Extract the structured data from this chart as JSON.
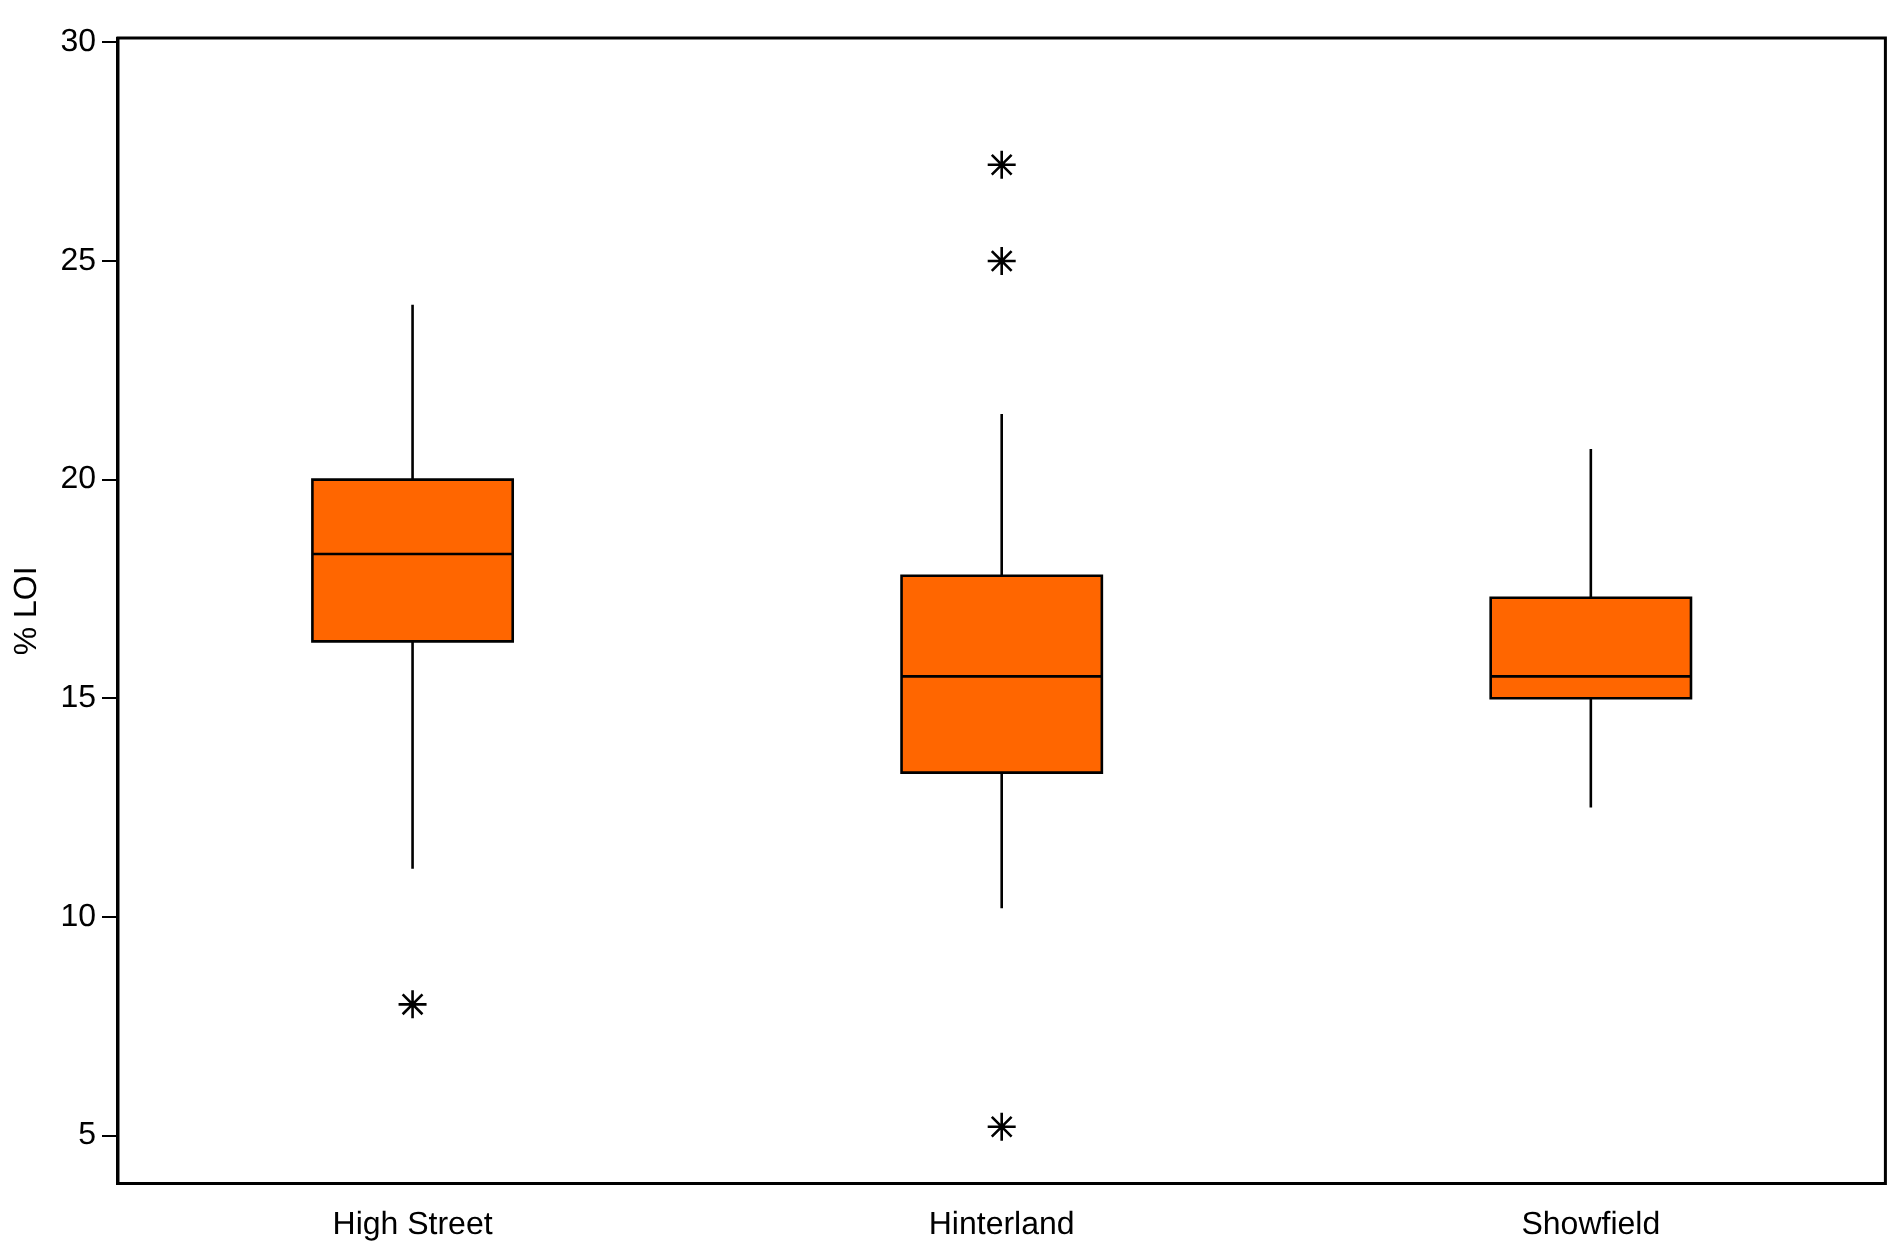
{
  "chart_data": {
    "type": "box",
    "ylabel": "% LOI",
    "categories": [
      "High Street",
      "Hinterland",
      "Showfield"
    ],
    "color": "#ff6600",
    "boxes": [
      {
        "low": 11.1,
        "q1": 16.3,
        "median": 18.3,
        "q3": 20.0,
        "high": 24.0,
        "outliers": [
          8.0
        ]
      },
      {
        "low": 10.2,
        "q1": 13.3,
        "median": 15.5,
        "q3": 17.8,
        "high": 21.5,
        "outliers": [
          5.2,
          25.0,
          27.2
        ]
      },
      {
        "low": 12.5,
        "q1": 15.0,
        "median": 15.5,
        "q3": 17.3,
        "high": 20.7
      }
    ],
    "ylim": [
      3.9,
      30.1
    ],
    "yticks": [
      5,
      10,
      15,
      20,
      25,
      30
    ]
  }
}
